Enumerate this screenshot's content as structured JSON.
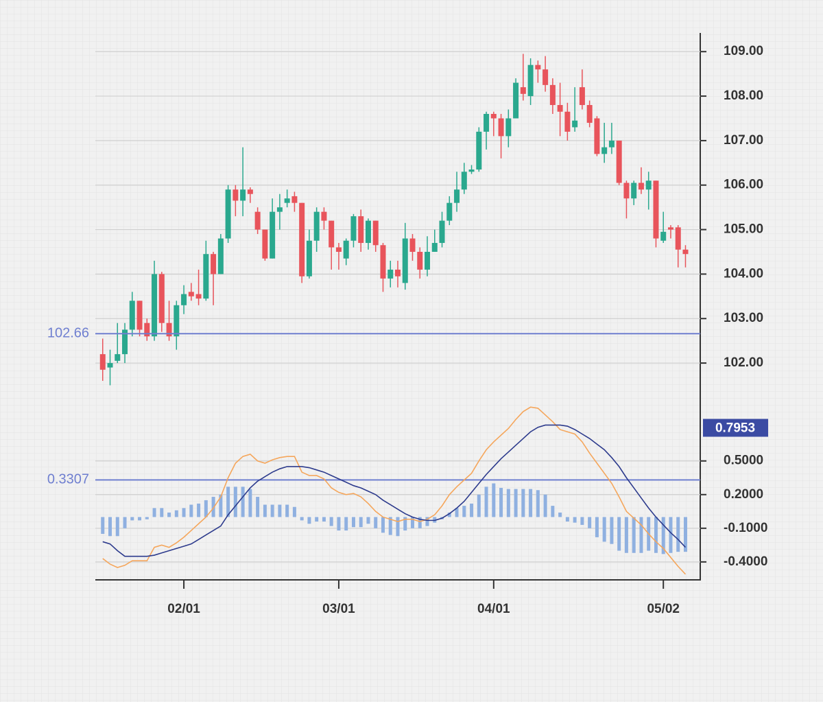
{
  "chart_data": [
    {
      "type": "candlestick",
      "open": [
        102.2,
        101.9,
        102.05,
        102.2,
        102.75,
        103.4,
        102.9,
        102.6,
        104.0,
        102.9,
        102.6,
        103.3,
        103.6,
        103.55,
        103.45,
        104.45,
        104.0,
        104.8,
        105.9,
        105.65,
        105.9,
        105.4,
        105.0,
        104.35,
        105.4,
        105.6,
        105.75,
        105.6,
        103.95,
        104.75,
        105.4,
        105.2,
        104.6,
        104.35,
        104.75,
        105.3,
        104.7,
        105.2,
        104.65,
        103.9,
        104.1,
        103.8,
        104.8,
        104.5,
        104.1,
        104.5,
        104.7,
        105.2,
        105.6,
        105.9,
        106.3,
        106.35,
        107.2,
        107.6,
        107.5,
        107.1,
        107.5,
        108.2,
        108.0,
        108.7,
        108.6,
        108.25,
        107.8,
        107.65,
        107.3,
        108.2,
        107.8,
        107.5,
        106.7,
        106.85,
        107.0,
        106.05,
        105.7,
        106.05,
        105.9,
        106.1,
        104.75,
        105.05,
        105.05,
        104.55
      ],
      "high": [
        102.55,
        102.3,
        102.9,
        102.9,
        103.6,
        103.4,
        103.0,
        104.3,
        104.05,
        103.4,
        103.4,
        103.75,
        103.8,
        104.1,
        104.75,
        104.5,
        104.9,
        106.0,
        106.0,
        106.85,
        105.95,
        105.5,
        105.0,
        105.7,
        105.8,
        105.9,
        105.85,
        105.6,
        105.0,
        105.5,
        105.5,
        105.2,
        104.7,
        104.8,
        105.35,
        105.45,
        105.25,
        105.2,
        104.7,
        104.3,
        104.3,
        105.15,
        104.9,
        104.6,
        104.85,
        105.0,
        105.4,
        105.75,
        106.3,
        106.5,
        106.45,
        107.3,
        107.65,
        107.65,
        107.6,
        107.7,
        108.4,
        108.95,
        108.85,
        108.8,
        108.9,
        108.4,
        108.3,
        107.85,
        108.2,
        108.6,
        107.9,
        107.55,
        107.4,
        107.4,
        107.0,
        106.1,
        106.1,
        106.4,
        106.3,
        106.1,
        105.4,
        105.1,
        105.1,
        104.65
      ],
      "low": [
        101.6,
        101.5,
        102.0,
        102.0,
        102.6,
        102.6,
        102.5,
        102.5,
        102.7,
        102.5,
        102.3,
        103.1,
        103.4,
        103.3,
        103.4,
        103.3,
        104.0,
        104.7,
        105.3,
        105.3,
        105.6,
        104.9,
        104.3,
        104.35,
        105.0,
        105.5,
        105.4,
        103.8,
        103.9,
        104.5,
        105.0,
        104.1,
        104.1,
        104.2,
        104.6,
        104.5,
        104.55,
        104.5,
        103.6,
        103.7,
        103.7,
        103.65,
        104.3,
        103.9,
        103.95,
        104.5,
        104.6,
        105.1,
        105.4,
        105.8,
        106.25,
        106.3,
        106.8,
        107.1,
        106.6,
        106.85,
        107.5,
        107.9,
        107.8,
        108.3,
        108.1,
        107.6,
        107.1,
        107.0,
        107.2,
        107.7,
        107.3,
        106.65,
        106.5,
        106.7,
        106.0,
        105.25,
        105.55,
        105.8,
        105.45,
        104.6,
        104.7,
        104.8,
        104.15,
        104.15
      ],
      "close": [
        101.85,
        102.0,
        102.2,
        102.75,
        103.4,
        102.75,
        102.6,
        104.0,
        102.9,
        102.6,
        103.3,
        103.55,
        103.5,
        103.45,
        104.45,
        104.0,
        104.8,
        105.9,
        105.65,
        105.9,
        105.8,
        105.0,
        104.35,
        105.4,
        105.5,
        105.7,
        105.6,
        103.95,
        104.75,
        105.4,
        105.2,
        104.6,
        104.5,
        104.75,
        105.3,
        104.7,
        105.2,
        104.65,
        103.9,
        104.1,
        103.95,
        104.8,
        104.5,
        104.1,
        104.5,
        104.7,
        105.2,
        105.6,
        105.9,
        106.3,
        106.35,
        107.2,
        107.6,
        107.5,
        107.1,
        107.5,
        108.3,
        108.05,
        108.7,
        108.6,
        108.25,
        107.8,
        107.65,
        107.2,
        107.45,
        107.8,
        107.4,
        106.7,
        106.85,
        107.0,
        106.05,
        105.7,
        106.05,
        105.9,
        106.1,
        104.8,
        104.95,
        105.0,
        104.55,
        104.45
      ],
      "up_color": "#2aa88e",
      "down_color": "#e8545b",
      "ylim": [
        101.6,
        109.42
      ],
      "yticks": [
        {
          "value": 102,
          "label": "102.00"
        },
        {
          "value": 103,
          "label": "103.00"
        },
        {
          "value": 104,
          "label": "104.00"
        },
        {
          "value": 105,
          "label": "105.00"
        },
        {
          "value": 106,
          "label": "106.00"
        },
        {
          "value": 107,
          "label": "107.00"
        },
        {
          "value": 108,
          "label": "108.00"
        },
        {
          "value": 109,
          "label": "109.00"
        }
      ],
      "grid": true,
      "price_line": 102.66,
      "line_color": "#6f7fd0"
    },
    {
      "type": "macd",
      "categories": [
        null,
        null,
        null,
        null,
        null,
        null,
        null,
        null,
        null,
        null,
        null,
        "02/01",
        null,
        null,
        null,
        null,
        null,
        null,
        null,
        null,
        null,
        null,
        null,
        null,
        null,
        null,
        null,
        null,
        null,
        null,
        null,
        null,
        "03/01",
        null,
        null,
        null,
        null,
        null,
        null,
        null,
        null,
        null,
        null,
        null,
        null,
        null,
        null,
        null,
        null,
        null,
        null,
        null,
        null,
        "04/01",
        null,
        null,
        null,
        null,
        null,
        null,
        null,
        null,
        null,
        null,
        null,
        null,
        null,
        null,
        null,
        null,
        null,
        null,
        null,
        null,
        null,
        null,
        "05/02",
        null,
        null,
        null
      ],
      "histogram": {
        "color": "#8fb0e0",
        "values": [
          -0.15,
          -0.17,
          -0.17,
          -0.1,
          -0.03,
          -0.03,
          -0.02,
          0.08,
          0.08,
          0.04,
          0.06,
          0.08,
          0.11,
          0.12,
          0.15,
          0.18,
          0.2,
          0.27,
          0.27,
          0.27,
          0.25,
          0.18,
          0.11,
          0.11,
          0.11,
          0.11,
          0.09,
          -0.03,
          -0.06,
          -0.04,
          -0.04,
          -0.08,
          -0.12,
          -0.12,
          -0.09,
          -0.09,
          -0.06,
          -0.1,
          -0.14,
          -0.16,
          -0.17,
          -0.12,
          -0.1,
          -0.1,
          -0.08,
          -0.05,
          -0.02,
          0.04,
          0.08,
          0.1,
          0.12,
          0.2,
          0.27,
          0.3,
          0.26,
          0.25,
          0.25,
          0.25,
          0.25,
          0.24,
          0.2,
          0.1,
          0.04,
          -0.04,
          -0.05,
          -0.07,
          -0.1,
          -0.18,
          -0.22,
          -0.24,
          -0.3,
          -0.32,
          -0.32,
          -0.32,
          -0.3,
          -0.32,
          -0.33,
          -0.32,
          -0.31,
          -0.31
        ]
      },
      "series": [
        {
          "color": "#f5a65b",
          "values": [
            -0.37,
            -0.42,
            -0.45,
            -0.43,
            -0.39,
            -0.39,
            -0.39,
            -0.27,
            -0.25,
            -0.27,
            -0.23,
            -0.18,
            -0.12,
            -0.06,
            0.0,
            0.08,
            0.18,
            0.35,
            0.48,
            0.54,
            0.56,
            0.5,
            0.48,
            0.51,
            0.53,
            0.54,
            0.54,
            0.4,
            0.37,
            0.37,
            0.34,
            0.26,
            0.22,
            0.2,
            0.21,
            0.18,
            0.12,
            0.05,
            0.0,
            -0.02,
            -0.04,
            -0.02,
            -0.02,
            -0.04,
            -0.02,
            0.02,
            0.1,
            0.2,
            0.27,
            0.33,
            0.39,
            0.5,
            0.6,
            0.67,
            0.73,
            0.79,
            0.87,
            0.94,
            0.98,
            0.97,
            0.91,
            0.85,
            0.78,
            0.76,
            0.74,
            0.67,
            0.57,
            0.48,
            0.39,
            0.3,
            0.18,
            0.05,
            -0.01,
            -0.07,
            -0.15,
            -0.22,
            -0.28,
            -0.36,
            -0.44,
            -0.51
          ]
        },
        {
          "color": "#2c3a8c",
          "values": [
            -0.22,
            -0.24,
            -0.3,
            -0.35,
            -0.35,
            -0.35,
            -0.35,
            -0.34,
            -0.32,
            -0.3,
            -0.28,
            -0.26,
            -0.24,
            -0.2,
            -0.16,
            -0.12,
            -0.08,
            0.02,
            0.1,
            0.18,
            0.26,
            0.32,
            0.36,
            0.4,
            0.43,
            0.45,
            0.45,
            0.45,
            0.44,
            0.42,
            0.4,
            0.37,
            0.34,
            0.31,
            0.28,
            0.26,
            0.23,
            0.2,
            0.15,
            0.11,
            0.07,
            0.03,
            0.0,
            -0.02,
            -0.03,
            -0.03,
            -0.01,
            0.03,
            0.08,
            0.14,
            0.22,
            0.3,
            0.38,
            0.45,
            0.52,
            0.58,
            0.64,
            0.7,
            0.76,
            0.8,
            0.82,
            0.82,
            0.82,
            0.81,
            0.78,
            0.74,
            0.7,
            0.65,
            0.6,
            0.53,
            0.45,
            0.35,
            0.26,
            0.17,
            0.08,
            0.0,
            -0.07,
            -0.14,
            -0.2,
            -0.27
          ]
        }
      ],
      "ylim": [
        -0.56,
        1.0
      ],
      "yticks": [
        {
          "value": -0.4,
          "label": "-0.4000"
        },
        {
          "value": -0.1,
          "label": "-0.1000"
        },
        {
          "value": 0.2,
          "label": "0.2000"
        },
        {
          "value": 0.5,
          "label": "0.5000"
        }
      ],
      "grid": true,
      "ref_line": 0.3307,
      "line_color": "#6f7fd0",
      "current_value": 0.7953,
      "current_color": "#3b4ba3"
    }
  ]
}
